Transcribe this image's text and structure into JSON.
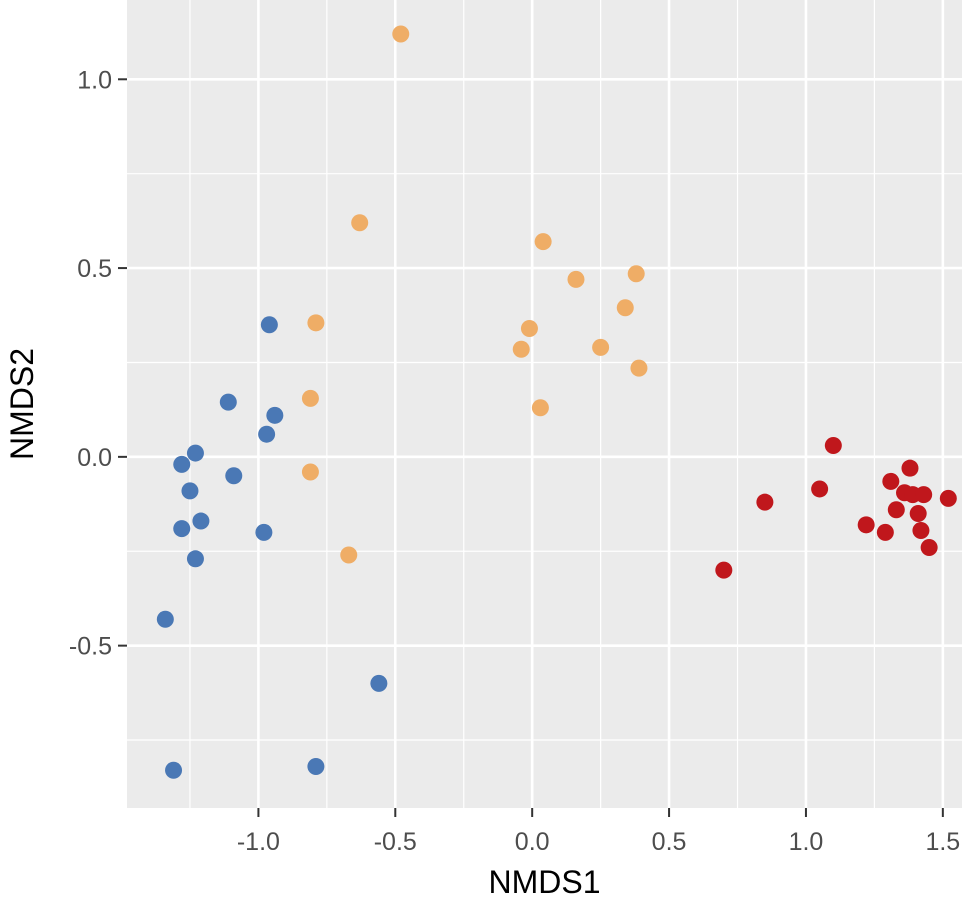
{
  "chart_data": {
    "type": "scatter",
    "xlabel": "NMDS1",
    "ylabel": "NMDS2",
    "xlim": [
      -1.48,
      1.57
    ],
    "ylim": [
      -0.93,
      1.21
    ],
    "x_ticks": [
      -1.0,
      -0.5,
      0.0,
      0.5,
      1.0,
      1.5
    ],
    "x_tick_labels": [
      "-1.0",
      "-0.5",
      "0.0",
      "0.5",
      "1.0",
      "1.5"
    ],
    "y_ticks": [
      -0.5,
      0.0,
      0.5,
      1.0
    ],
    "y_tick_labels": [
      "-0.5",
      "0.0",
      "0.5",
      "1.0"
    ],
    "grid": true,
    "legend": "none",
    "panel_background": "#ebebeb",
    "grid_color": "#ffffff",
    "series": [
      {
        "color": "#4a78b5",
        "points": [
          [
            -1.34,
            -0.43
          ],
          [
            -1.31,
            -0.83
          ],
          [
            -1.28,
            -0.02
          ],
          [
            -1.28,
            -0.19
          ],
          [
            -1.25,
            -0.09
          ],
          [
            -1.23,
            0.01
          ],
          [
            -1.23,
            -0.27
          ],
          [
            -1.21,
            -0.17
          ],
          [
            -1.11,
            0.145
          ],
          [
            -1.09,
            -0.05
          ],
          [
            -0.98,
            -0.2
          ],
          [
            -0.97,
            0.06
          ],
          [
            -0.96,
            0.35
          ],
          [
            -0.94,
            0.11
          ],
          [
            -0.79,
            -0.82
          ],
          [
            -0.56,
            -0.6
          ]
        ]
      },
      {
        "color": "#efad66",
        "points": [
          [
            -0.48,
            1.12
          ],
          [
            -0.63,
            0.62
          ],
          [
            -0.79,
            0.355
          ],
          [
            -0.81,
            0.155
          ],
          [
            -0.81,
            -0.04
          ],
          [
            -0.67,
            -0.26
          ],
          [
            -0.04,
            0.285
          ],
          [
            -0.01,
            0.34
          ],
          [
            0.04,
            0.57
          ],
          [
            0.03,
            0.13
          ],
          [
            0.16,
            0.47
          ],
          [
            0.25,
            0.29
          ],
          [
            0.34,
            0.395
          ],
          [
            0.38,
            0.485
          ],
          [
            0.39,
            0.235
          ]
        ]
      },
      {
        "color": "#c0171c",
        "points": [
          [
            0.7,
            -0.3
          ],
          [
            0.85,
            -0.12
          ],
          [
            1.05,
            -0.085
          ],
          [
            1.1,
            0.03
          ],
          [
            1.22,
            -0.18
          ],
          [
            1.29,
            -0.2
          ],
          [
            1.31,
            -0.065
          ],
          [
            1.33,
            -0.14
          ],
          [
            1.36,
            -0.095
          ],
          [
            1.38,
            -0.03
          ],
          [
            1.39,
            -0.1
          ],
          [
            1.41,
            -0.15
          ],
          [
            1.42,
            -0.195
          ],
          [
            1.43,
            -0.1
          ],
          [
            1.45,
            -0.24
          ],
          [
            1.52,
            -0.11
          ]
        ]
      }
    ]
  }
}
